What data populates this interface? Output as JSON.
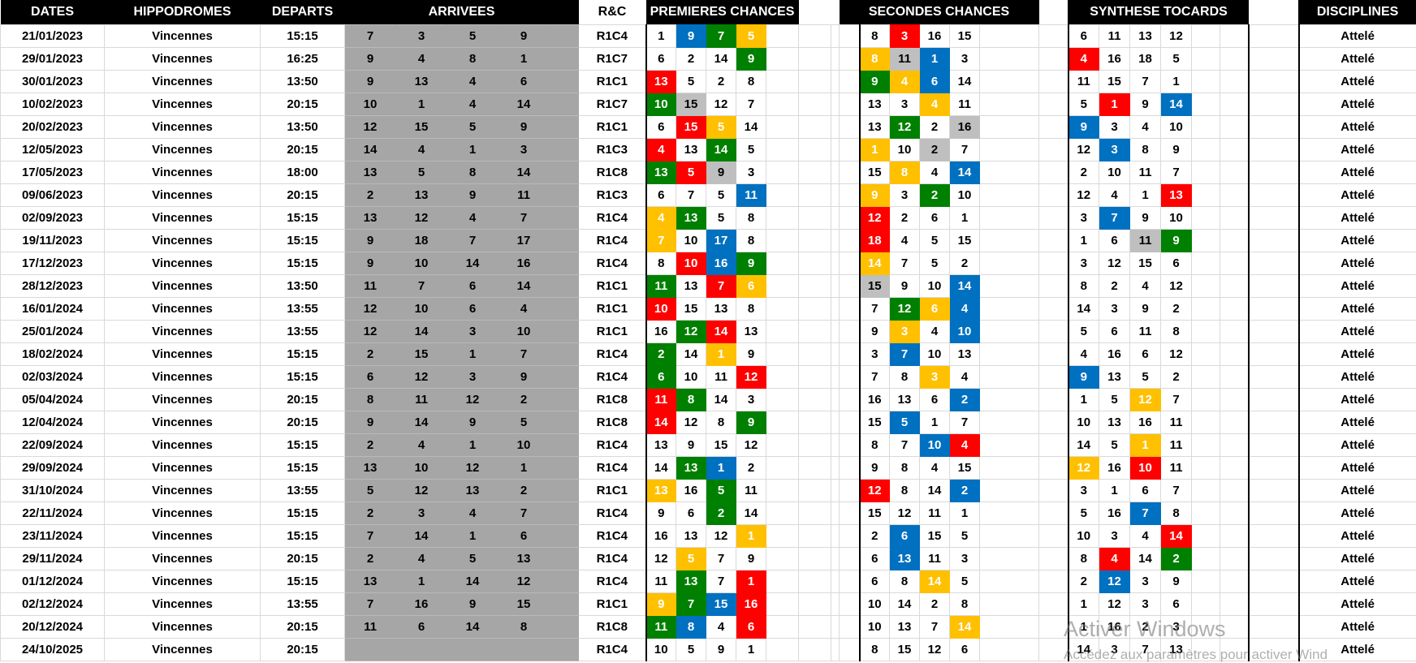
{
  "table": {
    "headers": {
      "dates": "DATES",
      "hippodromes": "HIPPODROMES",
      "departs": "DEPARTS",
      "arrivees": "ARRIVEES",
      "rc": "R&C",
      "premieres_chances": "PREMIERES CHANCES",
      "secondes_chances": "SECONDES CHANCES",
      "synthese_tocards": "SYNTHESE TOCARDS",
      "disciplines": "DISCIPLINES"
    },
    "highlight_colors": {
      "R": "#FF0000",
      "G": "#008000",
      "B": "#0070C0",
      "Y": "#FFC000",
      "S": "#BFBFBF"
    },
    "arrivees_background": "#A6A6A6",
    "header_background": "#000000",
    "rows": [
      {
        "date": "21/01/2023",
        "hippodrome": "Vincennes",
        "depart": "15:15",
        "arrivees": [
          "7",
          "3",
          "5",
          "9"
        ],
        "rc": "R1C4",
        "premieres": [
          "1",
          "9:B",
          "7:G",
          "5:Y"
        ],
        "secondes": [
          "8",
          "3:R",
          "16",
          "15"
        ],
        "synthese": [
          "6",
          "11",
          "13",
          "12"
        ],
        "discipline": "Attelé"
      },
      {
        "date": "29/01/2023",
        "hippodrome": "Vincennes",
        "depart": "16:25",
        "arrivees": [
          "9",
          "4",
          "8",
          "1"
        ],
        "rc": "R1C7",
        "premieres": [
          "6",
          "2",
          "14",
          "9:G"
        ],
        "secondes": [
          "8:Y",
          "11:S",
          "1:B",
          "3"
        ],
        "synthese": [
          "4:R",
          "16",
          "18",
          "5"
        ],
        "discipline": "Attelé"
      },
      {
        "date": "30/01/2023",
        "hippodrome": "Vincennes",
        "depart": "13:50",
        "arrivees": [
          "9",
          "13",
          "4",
          "6"
        ],
        "rc": "R1C1",
        "premieres": [
          "13:R",
          "5",
          "2",
          "8"
        ],
        "secondes": [
          "9:G",
          "4:Y",
          "6:B",
          "14"
        ],
        "synthese": [
          "11",
          "15",
          "7",
          "1"
        ],
        "discipline": "Attelé"
      },
      {
        "date": "10/02/2023",
        "hippodrome": "Vincennes",
        "depart": "20:15",
        "arrivees": [
          "10",
          "1",
          "4",
          "14"
        ],
        "rc": "R1C7",
        "premieres": [
          "10:G",
          "15:S",
          "12",
          "7"
        ],
        "secondes": [
          "13",
          "3",
          "4:Y",
          "11"
        ],
        "synthese": [
          "5",
          "1:R",
          "9",
          "14:B"
        ],
        "discipline": "Attelé"
      },
      {
        "date": "20/02/2023",
        "hippodrome": "Vincennes",
        "depart": "13:50",
        "arrivees": [
          "12",
          "15",
          "5",
          "9"
        ],
        "rc": "R1C1",
        "premieres": [
          "6",
          "15:R",
          "5:Y",
          "14"
        ],
        "secondes": [
          "13",
          "12:G",
          "2",
          "16:S"
        ],
        "synthese": [
          "9:B",
          "3",
          "4",
          "10"
        ],
        "discipline": "Attelé"
      },
      {
        "date": "12/05/2023",
        "hippodrome": "Vincennes",
        "depart": "20:15",
        "arrivees": [
          "14",
          "4",
          "1",
          "3"
        ],
        "rc": "R1C3",
        "premieres": [
          "4:R",
          "13",
          "14:G",
          "5"
        ],
        "secondes": [
          "1:Y",
          "10",
          "2:S",
          "7"
        ],
        "synthese": [
          "12",
          "3:B",
          "8",
          "9"
        ],
        "discipline": "Attelé"
      },
      {
        "date": "17/05/2023",
        "hippodrome": "Vincennes",
        "depart": "18:00",
        "arrivees": [
          "13",
          "5",
          "8",
          "14"
        ],
        "rc": "R1C8",
        "premieres": [
          "13:G",
          "5:R",
          "9:S",
          "3"
        ],
        "secondes": [
          "15",
          "8:Y",
          "4",
          "14:B"
        ],
        "synthese": [
          "2",
          "10",
          "11",
          "7"
        ],
        "discipline": "Attelé"
      },
      {
        "date": "09/06/2023",
        "hippodrome": "Vincennes",
        "depart": "20:15",
        "arrivees": [
          "2",
          "13",
          "9",
          "11"
        ],
        "rc": "R1C3",
        "premieres": [
          "6",
          "7",
          "5",
          "11:B"
        ],
        "secondes": [
          "9:Y",
          "3",
          "2:G",
          "10"
        ],
        "synthese": [
          "12",
          "4",
          "1",
          "13:R"
        ],
        "discipline": "Attelé"
      },
      {
        "date": "02/09/2023",
        "hippodrome": "Vincennes",
        "depart": "15:15",
        "arrivees": [
          "13",
          "12",
          "4",
          "7"
        ],
        "rc": "R1C4",
        "premieres": [
          "4:Y",
          "13:G",
          "5",
          "8"
        ],
        "secondes": [
          "12:R",
          "2",
          "6",
          "1"
        ],
        "synthese": [
          "3",
          "7:B",
          "9",
          "10"
        ],
        "discipline": "Attelé"
      },
      {
        "date": "19/11/2023",
        "hippodrome": "Vincennes",
        "depart": "15:15",
        "arrivees": [
          "9",
          "18",
          "7",
          "17"
        ],
        "rc": "R1C4",
        "premieres": [
          "7:Y",
          "10",
          "17:B",
          "8"
        ],
        "secondes": [
          "18:R",
          "4",
          "5",
          "15"
        ],
        "synthese": [
          "1",
          "6",
          "11:S",
          "9:G"
        ],
        "discipline": "Attelé"
      },
      {
        "date": "17/12/2023",
        "hippodrome": "Vincennes",
        "depart": "15:15",
        "arrivees": [
          "9",
          "10",
          "14",
          "16"
        ],
        "rc": "R1C4",
        "premieres": [
          "8",
          "10:R",
          "16:B",
          "9:G"
        ],
        "secondes": [
          "14:Y",
          "7",
          "5",
          "2"
        ],
        "synthese": [
          "3",
          "12",
          "15",
          "6"
        ],
        "discipline": "Attelé"
      },
      {
        "date": "28/12/2023",
        "hippodrome": "Vincennes",
        "depart": "13:50",
        "arrivees": [
          "11",
          "7",
          "6",
          "14"
        ],
        "rc": "R1C1",
        "premieres": [
          "11:G",
          "13",
          "7:R",
          "6:Y"
        ],
        "secondes": [
          "15:S",
          "9",
          "10",
          "14:B"
        ],
        "synthese": [
          "8",
          "2",
          "4",
          "12"
        ],
        "discipline": "Attelé"
      },
      {
        "date": "16/01/2024",
        "hippodrome": "Vincennes",
        "depart": "13:55",
        "arrivees": [
          "12",
          "10",
          "6",
          "4"
        ],
        "rc": "R1C1",
        "premieres": [
          "10:R",
          "15",
          "13",
          "8"
        ],
        "secondes": [
          "7",
          "12:G",
          "6:Y",
          "4:B"
        ],
        "synthese": [
          "14",
          "3",
          "9",
          "2"
        ],
        "discipline": "Attelé"
      },
      {
        "date": "25/01/2024",
        "hippodrome": "Vincennes",
        "depart": "13:55",
        "arrivees": [
          "12",
          "14",
          "3",
          "10"
        ],
        "rc": "R1C1",
        "premieres": [
          "16",
          "12:G",
          "14:R",
          "13"
        ],
        "secondes": [
          "9",
          "3:Y",
          "4",
          "10:B"
        ],
        "synthese": [
          "5",
          "6",
          "11",
          "8"
        ],
        "discipline": "Attelé"
      },
      {
        "date": "18/02/2024",
        "hippodrome": "Vincennes",
        "depart": "15:15",
        "arrivees": [
          "2",
          "15",
          "1",
          "7"
        ],
        "rc": "R1C4",
        "premieres": [
          "2:G",
          "14",
          "1:Y",
          "9"
        ],
        "secondes": [
          "3",
          "7:B",
          "10",
          "13"
        ],
        "synthese": [
          "4",
          "16",
          "6",
          "12"
        ],
        "discipline": "Attelé"
      },
      {
        "date": "02/03/2024",
        "hippodrome": "Vincennes",
        "depart": "15:15",
        "arrivees": [
          "6",
          "12",
          "3",
          "9"
        ],
        "rc": "R1C4",
        "premieres": [
          "6:G",
          "10",
          "11",
          "12:R"
        ],
        "secondes": [
          "7",
          "8",
          "3:Y",
          "4"
        ],
        "synthese": [
          "9:B",
          "13",
          "5",
          "2"
        ],
        "discipline": "Attelé"
      },
      {
        "date": "05/04/2024",
        "hippodrome": "Vincennes",
        "depart": "20:15",
        "arrivees": [
          "8",
          "11",
          "12",
          "2"
        ],
        "rc": "R1C8",
        "premieres": [
          "11:R",
          "8:G",
          "14",
          "3"
        ],
        "secondes": [
          "16",
          "13",
          "6",
          "2:B"
        ],
        "synthese": [
          "1",
          "5",
          "12:Y",
          "7"
        ],
        "discipline": "Attelé"
      },
      {
        "date": "12/04/2024",
        "hippodrome": "Vincennes",
        "depart": "20:15",
        "arrivees": [
          "9",
          "14",
          "9",
          "5"
        ],
        "rc": "R1C8",
        "premieres": [
          "14:R",
          "12",
          "8",
          "9:G"
        ],
        "secondes": [
          "15",
          "5:B",
          "1",
          "7"
        ],
        "synthese": [
          "10",
          "13",
          "16",
          "11"
        ],
        "discipline": "Attelé"
      },
      {
        "date": "22/09/2024",
        "hippodrome": "Vincennes",
        "depart": "15:15",
        "arrivees": [
          "2",
          "4",
          "1",
          "10"
        ],
        "rc": "R1C4",
        "premieres": [
          "13",
          "9",
          "15",
          "12"
        ],
        "secondes": [
          "8",
          "7",
          "10:B",
          "4:R"
        ],
        "synthese": [
          "14",
          "5",
          "1:Y",
          "11"
        ],
        "discipline": "Attelé"
      },
      {
        "date": "29/09/2024",
        "hippodrome": "Vincennes",
        "depart": "15:15",
        "arrivees": [
          "13",
          "10",
          "12",
          "1"
        ],
        "rc": "R1C4",
        "premieres": [
          "14",
          "13:G",
          "1:B",
          "2"
        ],
        "secondes": [
          "9",
          "8",
          "4",
          "15"
        ],
        "synthese": [
          "12:Y",
          "16",
          "10:R",
          "11"
        ],
        "discipline": "Attelé"
      },
      {
        "date": "31/10/2024",
        "hippodrome": "Vincennes",
        "depart": "13:55",
        "arrivees": [
          "5",
          "12",
          "13",
          "2"
        ],
        "rc": "R1C1",
        "premieres": [
          "13:Y",
          "16",
          "5:G",
          "11"
        ],
        "secondes": [
          "12:R",
          "8",
          "14",
          "2:B"
        ],
        "synthese": [
          "3",
          "1",
          "6",
          "7"
        ],
        "discipline": "Attelé"
      },
      {
        "date": "22/11/2024",
        "hippodrome": "Vincennes",
        "depart": "15:15",
        "arrivees": [
          "2",
          "3",
          "4",
          "7"
        ],
        "rc": "R1C4",
        "premieres": [
          "9",
          "6",
          "2:G",
          "14"
        ],
        "secondes": [
          "15",
          "12",
          "11",
          "1"
        ],
        "synthese": [
          "5",
          "16",
          "7:B",
          "8"
        ],
        "discipline": "Attelé"
      },
      {
        "date": "23/11/2024",
        "hippodrome": "Vincennes",
        "depart": "15:15",
        "arrivees": [
          "7",
          "14",
          "1",
          "6"
        ],
        "rc": "R1C4",
        "premieres": [
          "16",
          "13",
          "12",
          "1:Y"
        ],
        "secondes": [
          "2",
          "6:B",
          "15",
          "5"
        ],
        "synthese": [
          "10",
          "3",
          "4",
          "14:R"
        ],
        "discipline": "Attelé"
      },
      {
        "date": "29/11/2024",
        "hippodrome": "Vincennes",
        "depart": "20:15",
        "arrivees": [
          "2",
          "4",
          "5",
          "13"
        ],
        "rc": "R1C4",
        "premieres": [
          "12",
          "5:Y",
          "7",
          "9"
        ],
        "secondes": [
          "6",
          "13:B",
          "11",
          "3"
        ],
        "synthese": [
          "8",
          "4:R",
          "14",
          "2:G"
        ],
        "discipline": "Attelé"
      },
      {
        "date": "01/12/2024",
        "hippodrome": "Vincennes",
        "depart": "15:15",
        "arrivees": [
          "13",
          "1",
          "14",
          "12"
        ],
        "rc": "R1C4",
        "premieres": [
          "11",
          "13:G",
          "7",
          "1:R"
        ],
        "secondes": [
          "6",
          "8",
          "14:Y",
          "5"
        ],
        "synthese": [
          "2",
          "12:B",
          "3",
          "9"
        ],
        "discipline": "Attelé"
      },
      {
        "date": "02/12/2024",
        "hippodrome": "Vincennes",
        "depart": "13:55",
        "arrivees": [
          "7",
          "16",
          "9",
          "15"
        ],
        "rc": "R1C1",
        "premieres": [
          "9:Y",
          "7:G",
          "15:B",
          "16:R"
        ],
        "secondes": [
          "10",
          "14",
          "2",
          "8"
        ],
        "synthese": [
          "1",
          "12",
          "3",
          "6"
        ],
        "discipline": "Attelé"
      },
      {
        "date": "20/12/2024",
        "hippodrome": "Vincennes",
        "depart": "20:15",
        "arrivees": [
          "11",
          "6",
          "14",
          "8"
        ],
        "rc": "R1C8",
        "premieres": [
          "11:G",
          "8:B",
          "4",
          "6:R"
        ],
        "secondes": [
          "10",
          "13",
          "7",
          "14:Y"
        ],
        "synthese": [
          "1",
          "16",
          "2",
          "3"
        ],
        "discipline": "Attelé"
      },
      {
        "date": "24/10/2025",
        "hippodrome": "Vincennes",
        "depart": "20:15",
        "arrivees": [
          "",
          "",
          "",
          ""
        ],
        "rc": "R1C4",
        "premieres": [
          "10",
          "5",
          "9",
          "1"
        ],
        "secondes": [
          "8",
          "15",
          "12",
          "6"
        ],
        "synthese": [
          "14",
          "3",
          "7",
          "13"
        ],
        "discipline": "Attelé"
      }
    ]
  },
  "watermark": {
    "line1": "Activer Windows",
    "line2": "Accédez aux paramètres pour activer Wind"
  }
}
